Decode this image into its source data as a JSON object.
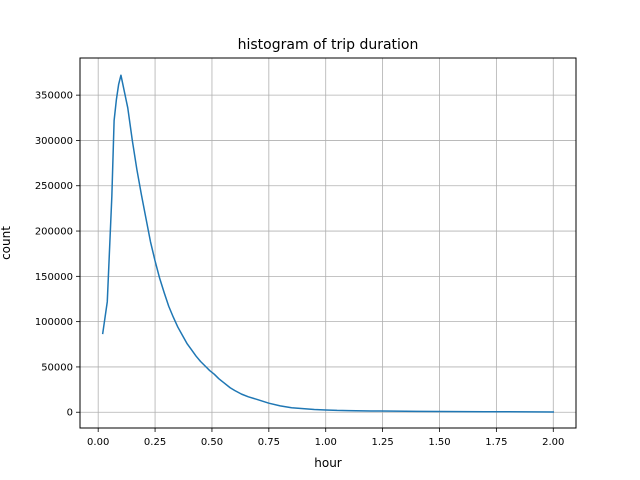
{
  "chart_data": {
    "type": "line",
    "title": "histogram of trip duration",
    "xlabel": "hour",
    "ylabel": "count",
    "xlim": [
      -0.0799,
      2.0999
    ],
    "ylim": [
      -17400,
      391000
    ],
    "x_ticks": [
      0.0,
      0.25,
      0.5,
      0.75,
      1.0,
      1.25,
      1.5,
      1.75,
      2.0
    ],
    "x_tick_labels": [
      "0.00",
      "0.25",
      "0.50",
      "0.75",
      "1.00",
      "1.25",
      "1.50",
      "1.75",
      "2.00"
    ],
    "y_ticks": [
      0,
      50000,
      100000,
      150000,
      200000,
      250000,
      300000,
      350000
    ],
    "y_tick_labels": [
      "0",
      "50000",
      "100000",
      "150000",
      "200000",
      "250000",
      "300000",
      "350000"
    ],
    "grid": true,
    "color": "#1f77b4",
    "series": [
      {
        "x": [
          0.02,
          0.04,
          0.06,
          0.07,
          0.08,
          0.09,
          0.1,
          0.11,
          0.13,
          0.15,
          0.17,
          0.19,
          0.21,
          0.23,
          0.25,
          0.27,
          0.29,
          0.31,
          0.33,
          0.35,
          0.37,
          0.39,
          0.41,
          0.43,
          0.45,
          0.47,
          0.49,
          0.51,
          0.53,
          0.55,
          0.58,
          0.6,
          0.63,
          0.66,
          0.7,
          0.75,
          0.8,
          0.85,
          0.9,
          0.95,
          1.0,
          1.05,
          1.1,
          1.2,
          1.3,
          1.4,
          1.5,
          1.6,
          1.7,
          1.8,
          1.9,
          2.0
        ],
        "values": [
          87000,
          122000,
          238000,
          322000,
          345000,
          362000,
          372000,
          360000,
          336000,
          300000,
          268000,
          240000,
          214000,
          188000,
          167000,
          148000,
          132000,
          117000,
          105000,
          94000,
          85000,
          76000,
          69000,
          62000,
          56000,
          51000,
          46000,
          42000,
          37000,
          33000,
          27000,
          24000,
          20000,
          17000,
          14000,
          10000,
          7000,
          5000,
          4000,
          3000,
          2500,
          2000,
          1800,
          1400,
          1200,
          1000,
          800,
          700,
          600,
          500,
          400,
          300
        ]
      }
    ]
  }
}
